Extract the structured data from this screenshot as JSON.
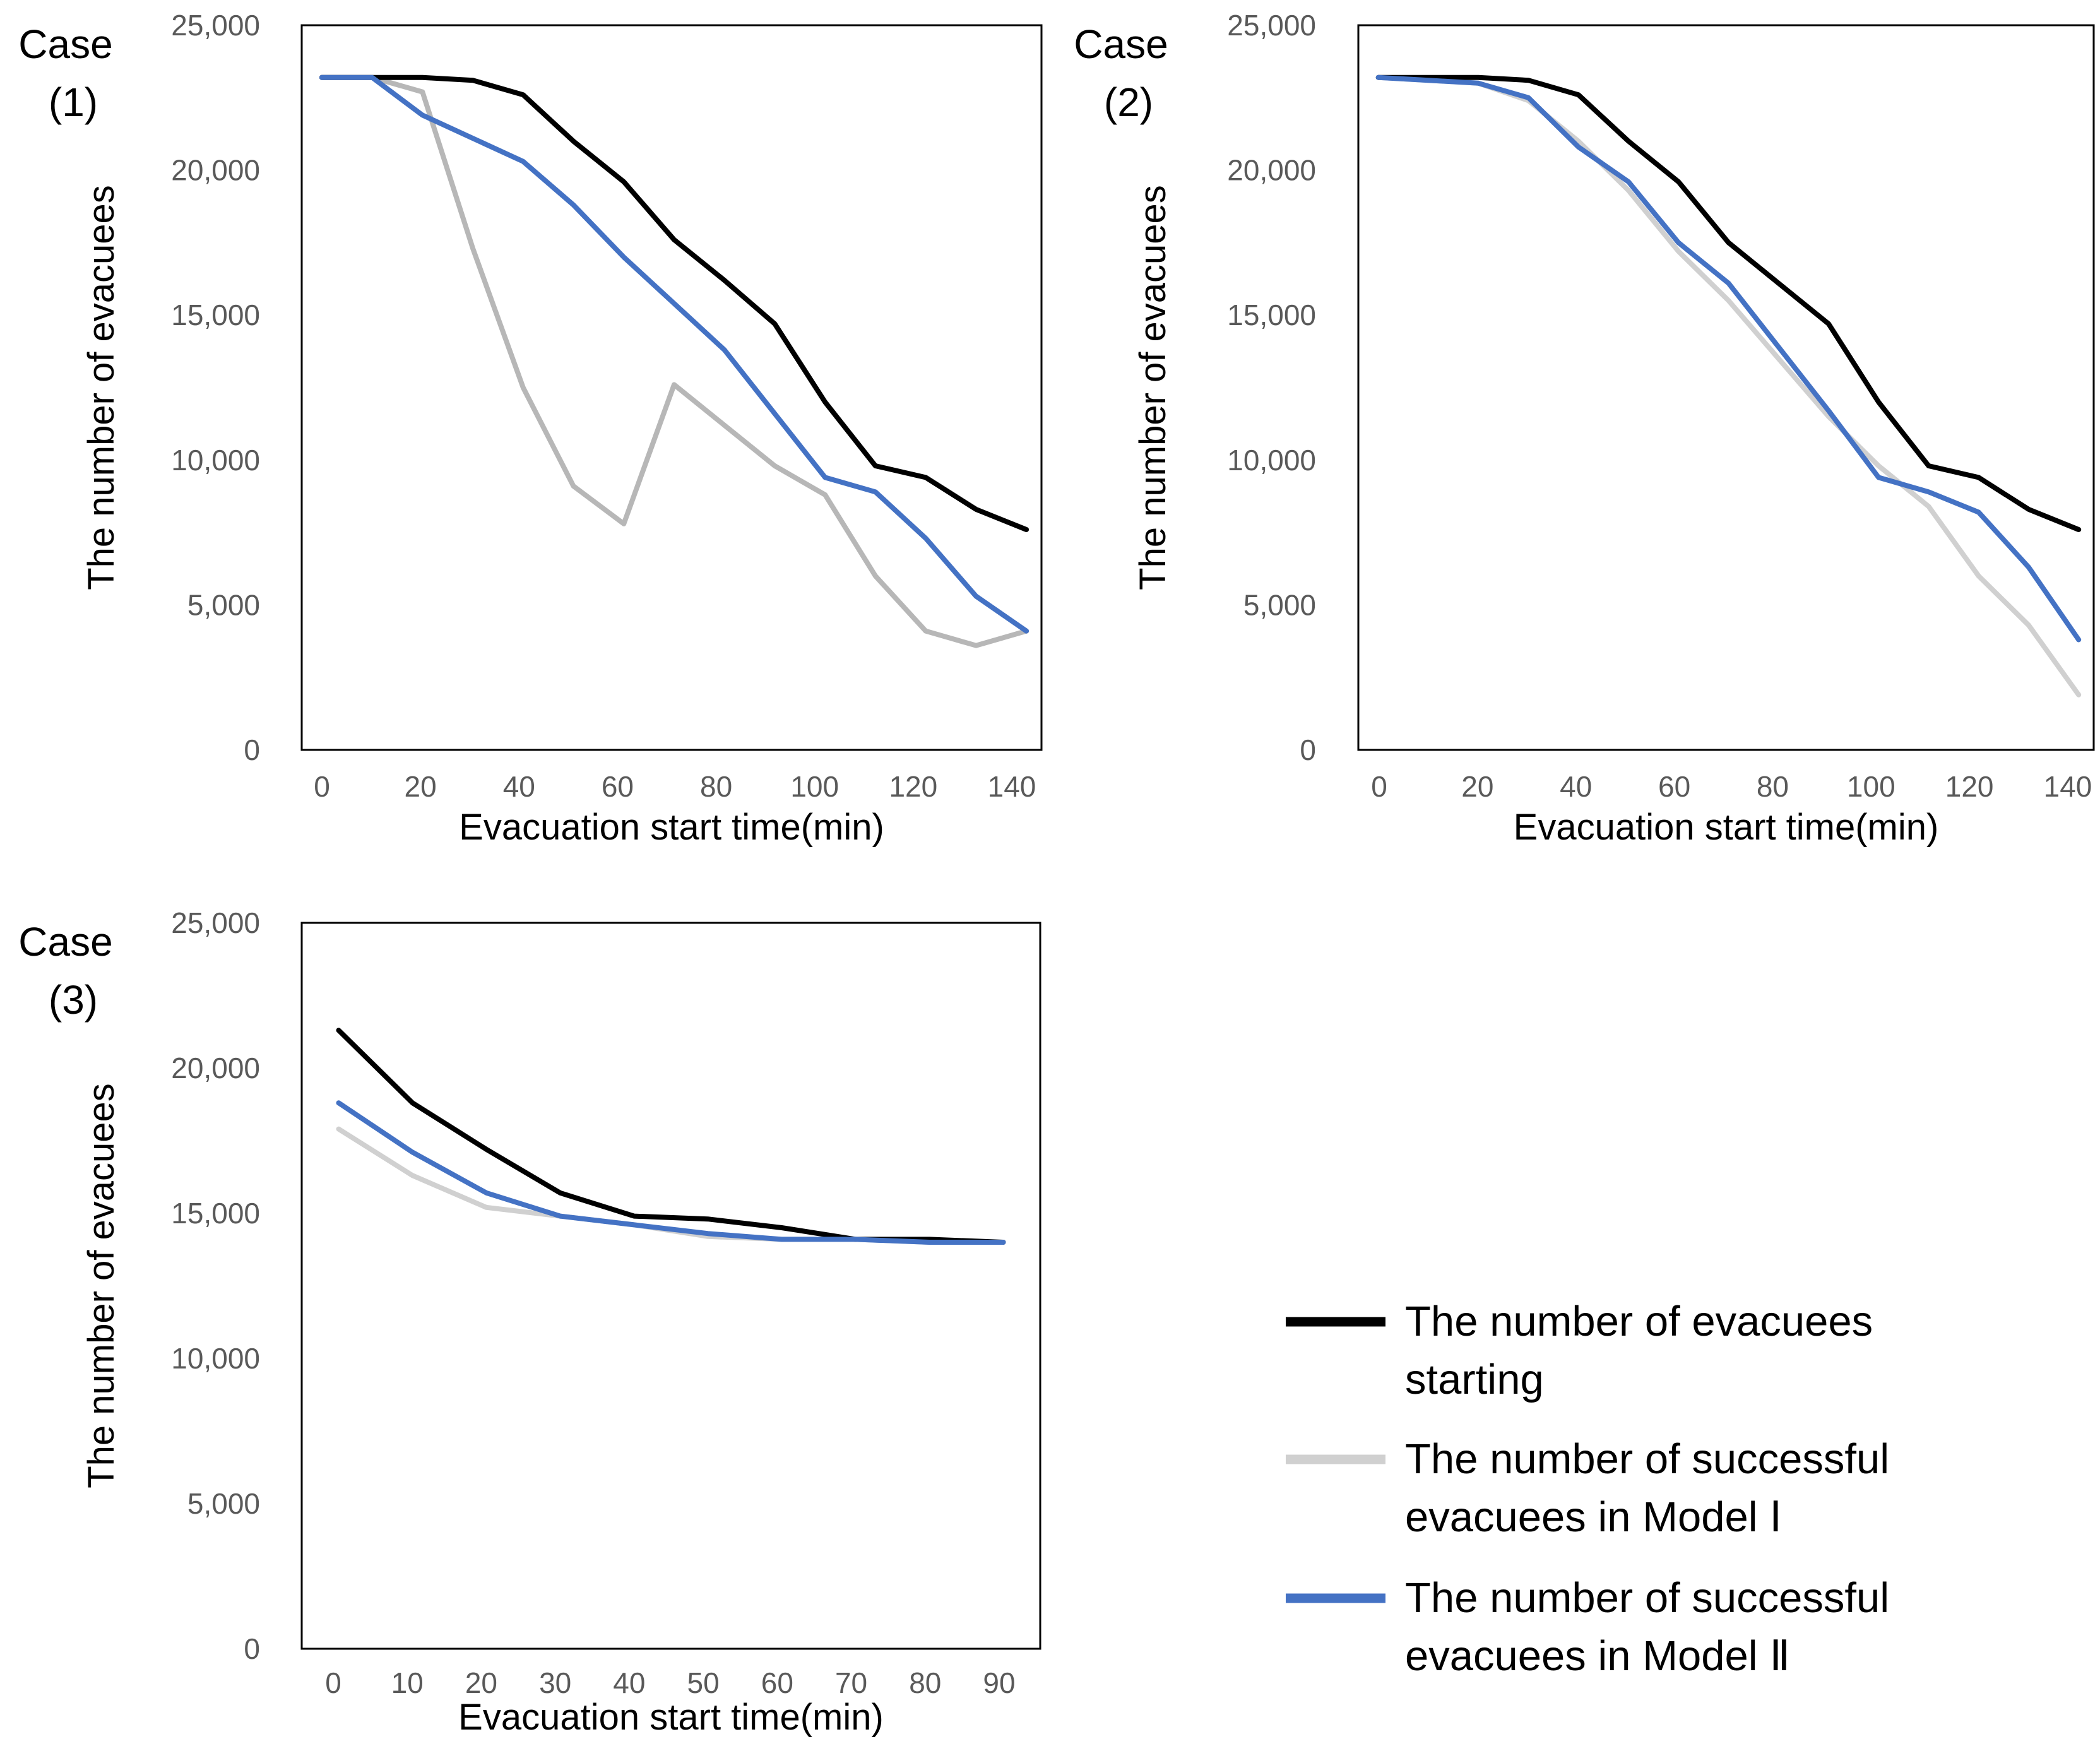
{
  "chart_data": [
    {
      "type": "line",
      "case_label": [
        "Case",
        "(1)"
      ],
      "xlabel": "Evacuation start time(min)",
      "ylabel": "The number of evacuees",
      "x": [
        0,
        10,
        20,
        30,
        40,
        50,
        60,
        70,
        80,
        90,
        100,
        110,
        120,
        130,
        140
      ],
      "xticks": [
        0,
        20,
        40,
        60,
        80,
        100,
        120,
        140
      ],
      "xlim": [
        -4,
        143
      ],
      "ylim": [
        0,
        25000
      ],
      "yticks": [
        0,
        5000,
        10000,
        15000,
        20000,
        25000
      ],
      "ytick_labels": [
        "0",
        "5,000",
        "10,000",
        "15,000",
        "20,000",
        "25,000"
      ],
      "series": [
        {
          "name": "The number of evacuees starting",
          "color": "#000000",
          "values": [
            23200,
            23200,
            23200,
            23100,
            22600,
            21000,
            19600,
            17600,
            16200,
            14700,
            12000,
            9800,
            9400,
            8300,
            7600
          ]
        },
        {
          "name": "The number of successful evacuees in Model Ⅰ",
          "color": "#b7b7b7",
          "values": [
            23200,
            23200,
            22700,
            17300,
            12500,
            9100,
            7800,
            12600,
            11200,
            9800,
            8800,
            6000,
            4100,
            3600,
            4100
          ]
        },
        {
          "name": "The number of successful evacuees in Model Ⅱ",
          "color": "#4472c4",
          "values": [
            23200,
            23200,
            21900,
            21100,
            20300,
            18800,
            17000,
            15400,
            13800,
            11600,
            9400,
            8900,
            7300,
            5300,
            4100
          ]
        }
      ]
    },
    {
      "type": "line",
      "case_label": [
        "Case",
        "(2)"
      ],
      "xlabel": "Evacuation start time(min)",
      "ylabel": "The number of evacuees",
      "x": [
        0,
        10,
        20,
        30,
        40,
        50,
        60,
        70,
        80,
        90,
        100,
        110,
        120,
        130,
        140
      ],
      "xticks": [
        0,
        20,
        40,
        60,
        80,
        100,
        120,
        140
      ],
      "xlim": [
        -4,
        143
      ],
      "ylim": [
        0,
        25000
      ],
      "yticks": [
        0,
        5000,
        10000,
        15000,
        20000,
        25000
      ],
      "ytick_labels": [
        "0",
        "5,000",
        "10,000",
        "15,000",
        "20,000",
        "25,000"
      ],
      "series": [
        {
          "name": "The number of evacuees starting",
          "color": "#000000",
          "values": [
            23200,
            23200,
            23200,
            23100,
            22600,
            21000,
            19600,
            17500,
            16100,
            14700,
            12000,
            9800,
            9400,
            8300,
            7600
          ]
        },
        {
          "name": "The number of successful evacuees in Model Ⅰ",
          "color": "#d0d0d0",
          "values": [
            23200,
            23100,
            23000,
            22400,
            21000,
            19300,
            17200,
            15500,
            13500,
            11500,
            9800,
            8400,
            6000,
            4300,
            1900
          ]
        },
        {
          "name": "The number of successful evacuees in Model Ⅱ",
          "color": "#4472c4",
          "values": [
            23200,
            23100,
            23000,
            22500,
            20800,
            19600,
            17500,
            16100,
            13900,
            11700,
            9400,
            8900,
            8200,
            6300,
            3800
          ]
        }
      ]
    },
    {
      "type": "line",
      "case_label": [
        "Case",
        "(3)"
      ],
      "xlabel": "Evacuation start time(min)",
      "ylabel": "The number of evacuees",
      "x": [
        0,
        10,
        20,
        30,
        40,
        50,
        60,
        70,
        80,
        90
      ],
      "xticks": [
        0,
        10,
        20,
        30,
        40,
        50,
        60,
        70,
        80,
        90
      ],
      "xlim": [
        -5,
        95
      ],
      "ylim": [
        0,
        25000
      ],
      "yticks": [
        0,
        5000,
        10000,
        15000,
        20000,
        25000
      ],
      "ytick_labels": [
        "0",
        "5,000",
        "10,000",
        "15,000",
        "20,000",
        "25,000"
      ],
      "series": [
        {
          "name": "The number of evacuees starting",
          "color": "#000000",
          "values": [
            21300,
            18800,
            17200,
            15700,
            14900,
            14800,
            14500,
            14100,
            14100,
            14000
          ]
        },
        {
          "name": "The number of successful evacuees in Model Ⅰ",
          "color": "#d0d0d0",
          "values": [
            17900,
            16300,
            15200,
            14900,
            14600,
            14200,
            14100,
            14100,
            14000,
            14000
          ]
        },
        {
          "name": "The number of successful evacuees in Model Ⅱ",
          "color": "#4472c4",
          "values": [
            18800,
            17100,
            15700,
            14900,
            14600,
            14300,
            14100,
            14100,
            14000,
            14000
          ]
        }
      ]
    }
  ],
  "legend": {
    "entries": [
      {
        "lines": [
          "The number of evacuees",
          "starting"
        ],
        "color": "#000000"
      },
      {
        "lines": [
          "The number of successful",
          "evacuees in Model Ⅰ"
        ],
        "color": "#d0d0d0"
      },
      {
        "lines": [
          "The number of successful",
          "evacuees in Model Ⅱ"
        ],
        "color": "#4472c4"
      }
    ]
  }
}
